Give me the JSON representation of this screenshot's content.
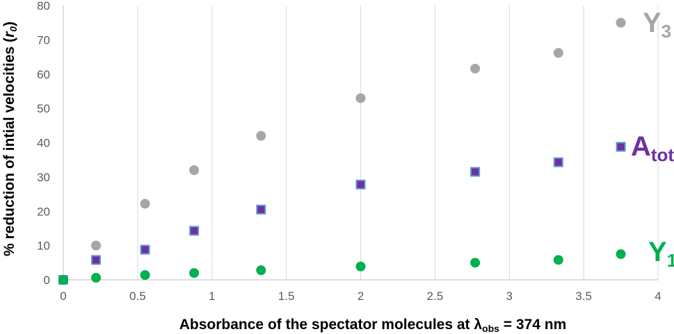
{
  "chart_data": {
    "type": "scatter",
    "xlabel": "Absorbance of the spectator molecules at λ",
    "xlabel_sub": "obs",
    "xlabel_tail": " = 374 nm",
    "ylabel": "% reduction of intial velocities (",
    "ylabel_var": "r",
    "ylabel_sub": "0",
    "ylabel_tail": ")",
    "xlim": [
      0,
      4
    ],
    "ylim": [
      0,
      80
    ],
    "xticks": [
      0,
      0.5,
      1,
      1.5,
      2,
      2.5,
      3,
      3.5,
      4
    ],
    "xtick_labels": [
      "0",
      "0.5",
      "1",
      "1.5",
      "2",
      "2.5",
      "3",
      "3.5",
      "4"
    ],
    "yticks": [
      0,
      10,
      20,
      30,
      40,
      50,
      60,
      70,
      80
    ],
    "ytick_labels": [
      "0",
      "10",
      "20",
      "30",
      "40",
      "50",
      "60",
      "70",
      "80"
    ],
    "grid": "vertical",
    "series": [
      {
        "name": "Y",
        "name_sub": "3",
        "marker": "circle",
        "color": "#a6a6a6",
        "x": [
          0,
          0.22,
          0.55,
          0.88,
          1.33,
          2.0,
          2.77,
          3.33,
          3.75
        ],
        "y": [
          0,
          10,
          22.2,
          32,
          42,
          53,
          61.6,
          66.2,
          75
        ]
      },
      {
        "name": "A",
        "name_sub": "tot",
        "marker": "square",
        "color": "#7030a0",
        "edge_color": "#5b9bd5",
        "x": [
          0,
          0.22,
          0.55,
          0.88,
          1.33,
          2.0,
          2.77,
          3.33,
          3.75
        ],
        "y": [
          0,
          5.8,
          8.8,
          14.3,
          20.5,
          27.8,
          31.5,
          34.3,
          38.8
        ]
      },
      {
        "name": "Y",
        "name_sub": "1",
        "marker": "circle",
        "color": "#00b050",
        "x": [
          0,
          0.22,
          0.55,
          0.88,
          1.33,
          2.0,
          2.77,
          3.33,
          3.75
        ],
        "y": [
          0,
          0.6,
          1.4,
          2.0,
          2.8,
          3.9,
          5.0,
          5.8,
          7.5
        ]
      }
    ]
  }
}
